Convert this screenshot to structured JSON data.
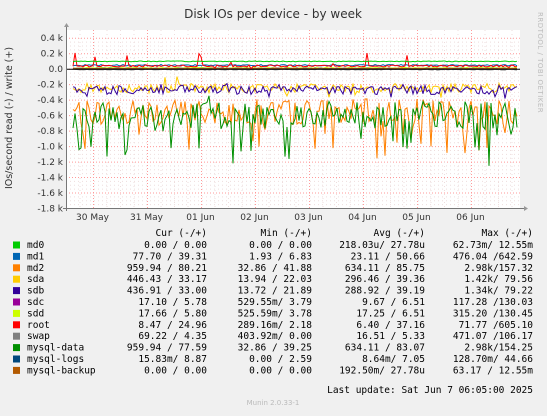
{
  "chart_data": {
    "type": "line",
    "title": "Disk IOs per device - by week",
    "ylabel": "IOs/second read (-) / write (+)",
    "ylim": [
      -1800,
      500
    ],
    "yticks": [
      "0.4 k",
      "0.2 k",
      "0.0",
      "-0.2 k",
      "-0.4 k",
      "-0.6 k",
      "-0.8 k",
      "-1.0 k",
      "-1.2 k",
      "-1.4 k",
      "-1.6 k",
      "-1.8 k"
    ],
    "ytick_values": [
      400,
      200,
      0,
      -200,
      -400,
      -600,
      -800,
      -1000,
      -1200,
      -1400,
      -1600,
      -1800
    ],
    "xticks": [
      "30 May",
      "31 May",
      "01 Jun",
      "02 Jun",
      "03 Jun",
      "04 Jun",
      "05 Jun",
      "06 Jun"
    ],
    "side_label": "RRDTOOL / TOBI OETIKER",
    "legend_headers": {
      "cur": "Cur (-/+)",
      "min": "Min (-/+)",
      "avg": "Avg (-/+)",
      "max": "Max (-/+)"
    },
    "series": [
      {
        "name": "md0",
        "color": "#00cc00",
        "cur": "0.00 /  0.00",
        "min": "0.00 /  0.00",
        "avg": "218.03u/ 27.78u",
        "max": "62.73m/ 12.55m"
      },
      {
        "name": "md1",
        "color": "#0066b3",
        "cur": "77.70 / 39.31",
        "min": "1.93 /  6.83",
        "avg": "23.11 / 50.66",
        "max": "476.04 /642.59"
      },
      {
        "name": "md2",
        "color": "#ff8000",
        "cur": "959.94 / 80.21",
        "min": "32.86 / 41.88",
        "avg": "634.11 / 85.75",
        "max": "2.98k/157.32"
      },
      {
        "name": "sda",
        "color": "#ffcc00",
        "cur": "446.43 / 33.17",
        "min": "13.94 / 22.03",
        "avg": "296.46 / 39.36",
        "max": "1.42k/ 79.56"
      },
      {
        "name": "sdb",
        "color": "#330099",
        "cur": "436.91 / 33.00",
        "min": "13.72 / 21.89",
        "avg": "288.92 / 39.19",
        "max": "1.34k/ 79.22"
      },
      {
        "name": "sdc",
        "color": "#990099",
        "cur": "17.10 /  5.78",
        "min": "529.55m/  3.79",
        "avg": "9.67 /  6.51",
        "max": "117.28 /130.03"
      },
      {
        "name": "sdd",
        "color": "#ccff00",
        "cur": "17.66 /  5.80",
        "min": "525.59m/  3.78",
        "avg": "17.25 /  6.51",
        "max": "315.20 /130.45"
      },
      {
        "name": "root",
        "color": "#ff0000",
        "cur": "8.47 / 24.96",
        "min": "289.16m/  2.18",
        "avg": "6.40 / 37.16",
        "max": "71.77 /605.10"
      },
      {
        "name": "swap",
        "color": "#808080",
        "cur": "69.22 /  4.35",
        "min": "403.92m/  0.00",
        "avg": "16.51 /  5.33",
        "max": "471.07 /106.17"
      },
      {
        "name": "mysql-data",
        "color": "#008f00",
        "cur": "959.94 / 77.59",
        "min": "32.86 / 39.25",
        "avg": "634.11 / 83.07",
        "max": "2.98k/154.25"
      },
      {
        "name": "mysql-logs",
        "color": "#00487d",
        "cur": "15.83m/  8.87",
        "min": "0.00 /  2.59",
        "avg": "8.64m/  7.05",
        "max": "128.70m/ 44.66"
      },
      {
        "name": "mysql-backup",
        "color": "#b35a00",
        "cur": "0.00 /  0.00",
        "min": "0.00 /  0.00",
        "avg": "192.50m/ 27.78u",
        "max": "63.17 / 12.55m"
      }
    ],
    "last_update": "Last update:  Sat Jun  7 06:05:00 2025",
    "footer": "Munin 2.0.33-1"
  }
}
